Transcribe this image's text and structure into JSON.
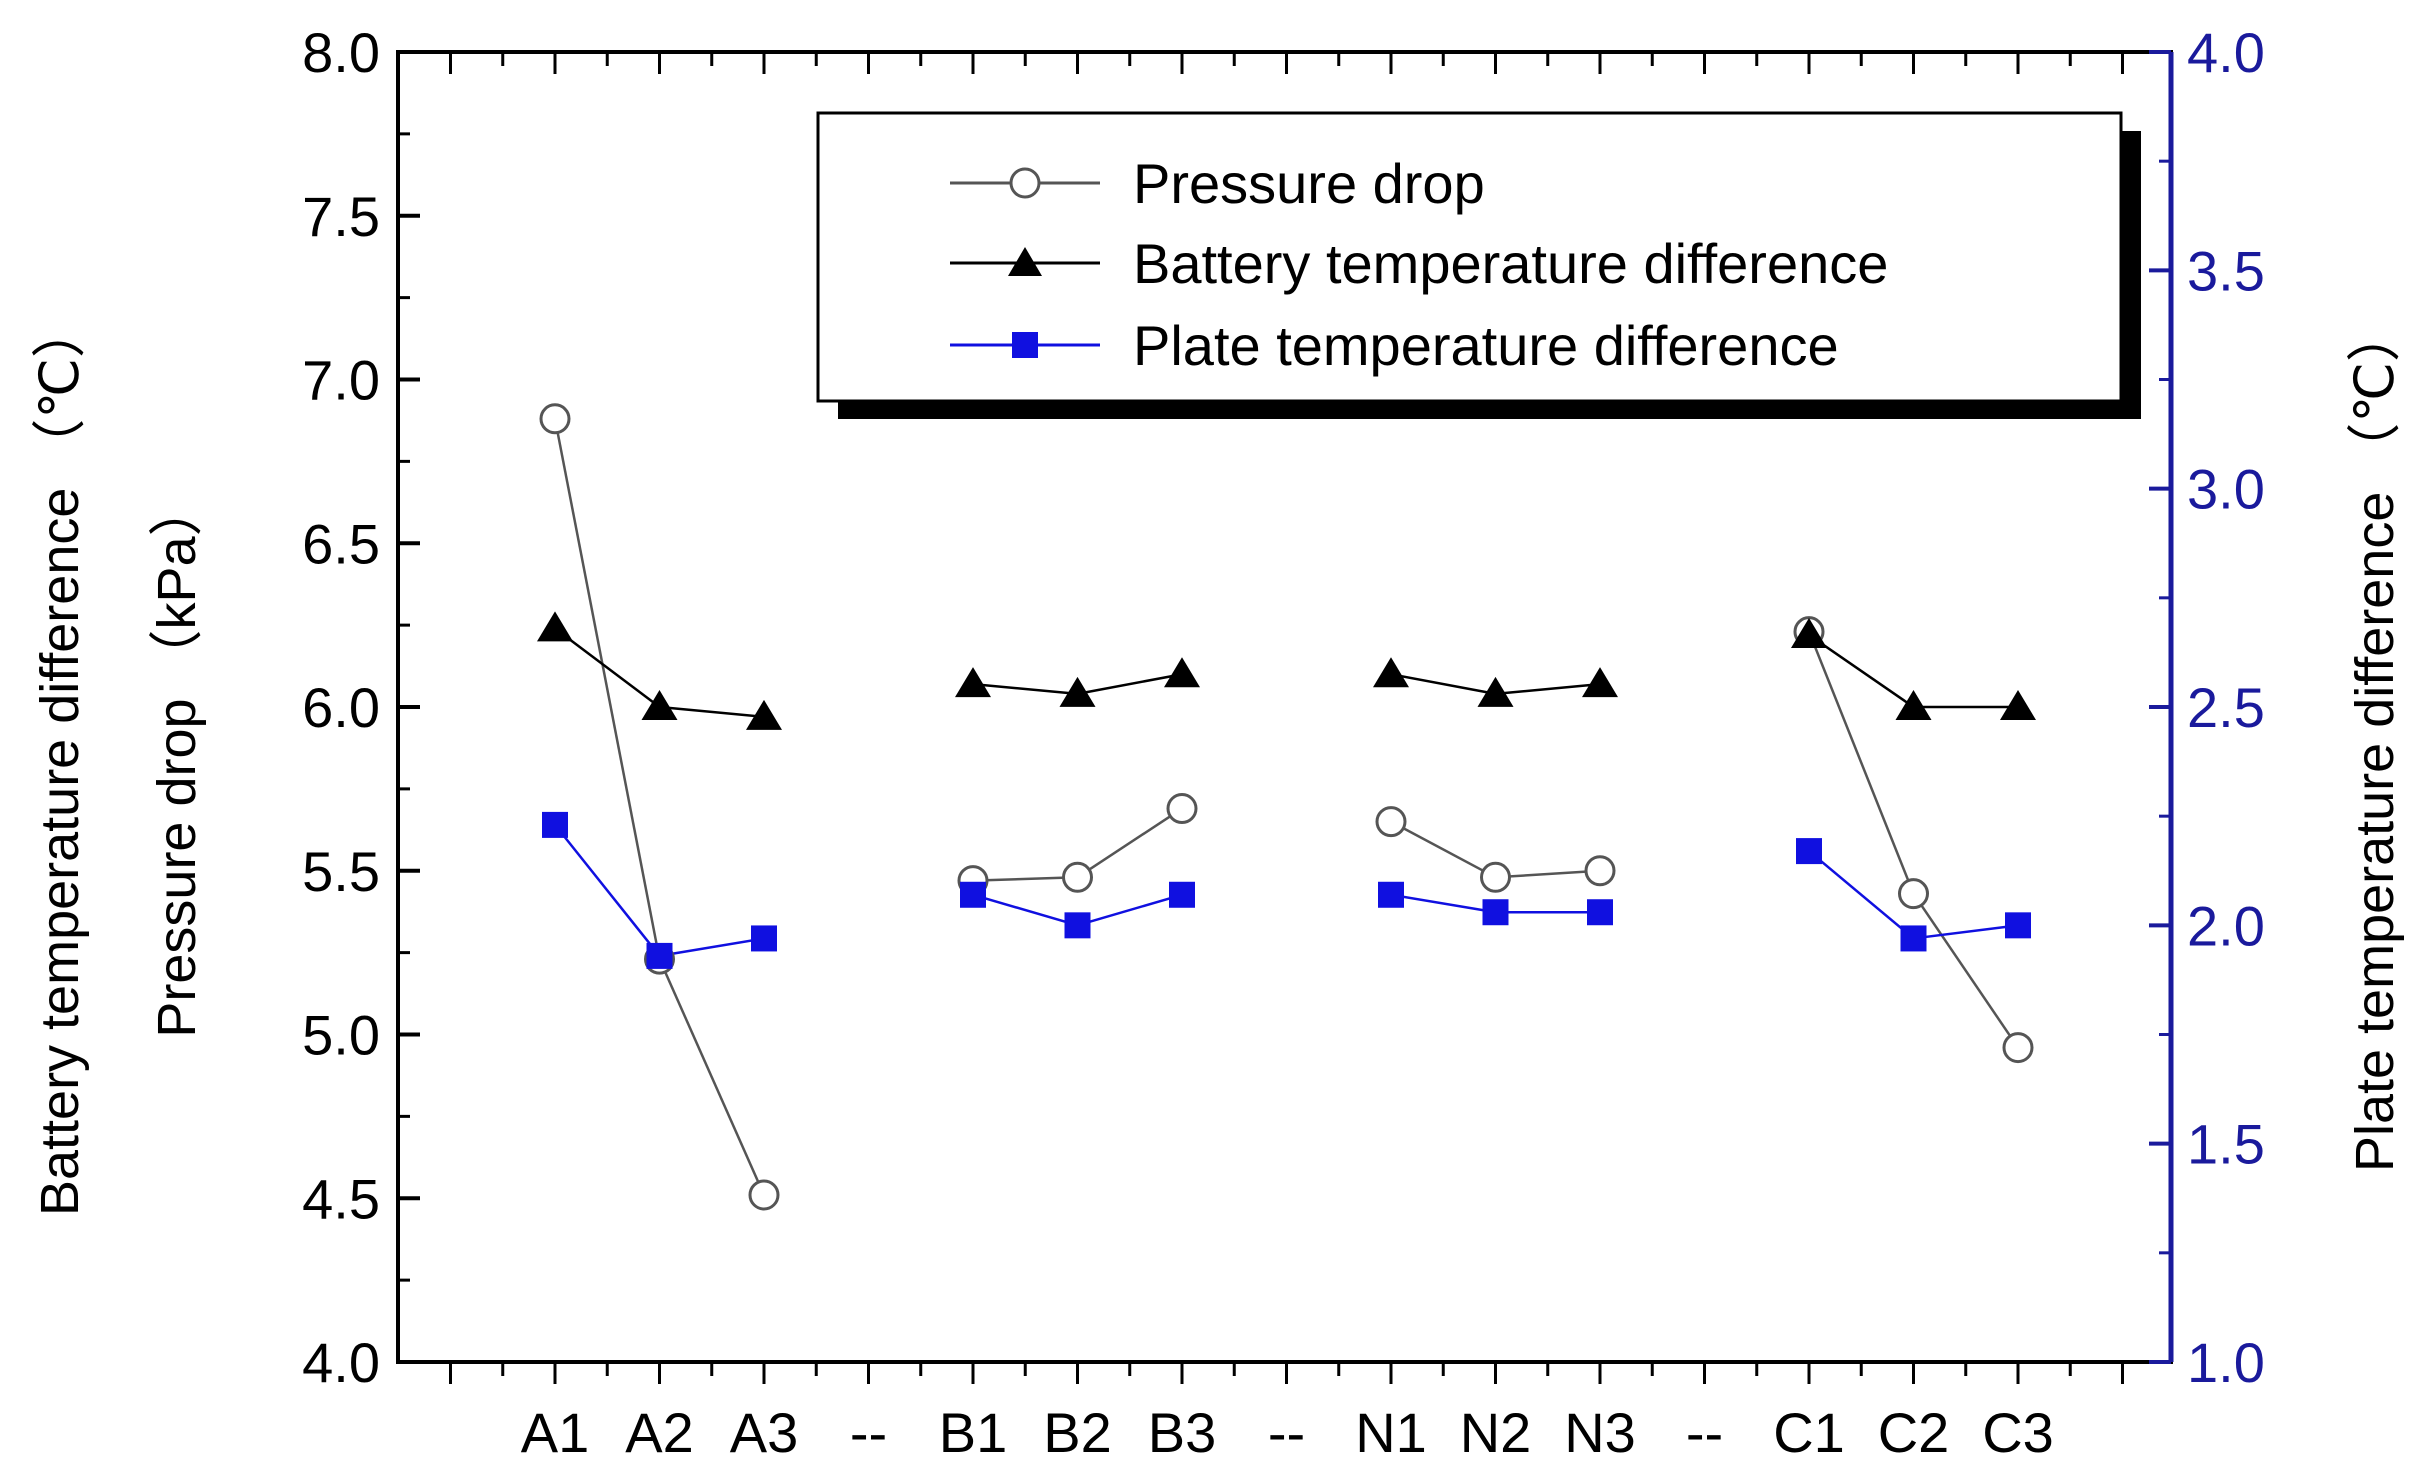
{
  "chart_data": {
    "type": "line",
    "categories": [
      "A1",
      "A2",
      "A3",
      "--",
      "B1",
      "B2",
      "B3",
      "--",
      "N1",
      "N2",
      "N3",
      "--",
      "C1",
      "C2",
      "C3"
    ],
    "left_axis": {
      "title": "Battery temperature difference （℃）",
      "title2": "Pressure drop （kPa）",
      "ylim": [
        4.0,
        8.0
      ],
      "ticks": [
        "4.0",
        "4.5",
        "5.0",
        "5.5",
        "6.0",
        "6.5",
        "7.0",
        "7.5",
        "8.0"
      ]
    },
    "right_axis": {
      "title": "Plate temperature difference （℃）",
      "ylim": [
        1.0,
        4.0
      ],
      "ticks": [
        "1.0",
        "1.5",
        "2.0",
        "2.5",
        "3.0",
        "3.5",
        "4.0"
      ]
    },
    "series": [
      {
        "name": "Pressure drop",
        "axis": "left",
        "marker": "open-circle",
        "color": "#555555",
        "values": [
          6.88,
          5.23,
          4.51,
          null,
          5.47,
          5.48,
          5.69,
          null,
          5.65,
          5.48,
          5.5,
          null,
          6.23,
          5.43,
          4.96
        ]
      },
      {
        "name": "Battery temperature difference",
        "axis": "left",
        "marker": "filled-triangle",
        "color": "#000000",
        "values": [
          6.24,
          6.0,
          5.97,
          null,
          6.07,
          6.04,
          6.1,
          null,
          6.1,
          6.04,
          6.07,
          null,
          6.22,
          6.0,
          6.0
        ]
      },
      {
        "name": "Plate temperature difference",
        "axis": "right",
        "marker": "filled-square",
        "color": "#1010e0",
        "values": [
          2.23,
          1.93,
          1.97,
          null,
          2.07,
          2.0,
          2.07,
          null,
          2.07,
          2.03,
          2.03,
          null,
          2.17,
          1.97,
          2.0
        ]
      }
    ],
    "legend": {
      "position": "top-right",
      "entries": [
        "Pressure drop",
        "Battery temperature difference",
        "Plate temperature difference"
      ]
    }
  },
  "colors": {
    "axis": "#000000",
    "right_axis": "#1a1a9c",
    "plate_series": "#1010e0"
  }
}
